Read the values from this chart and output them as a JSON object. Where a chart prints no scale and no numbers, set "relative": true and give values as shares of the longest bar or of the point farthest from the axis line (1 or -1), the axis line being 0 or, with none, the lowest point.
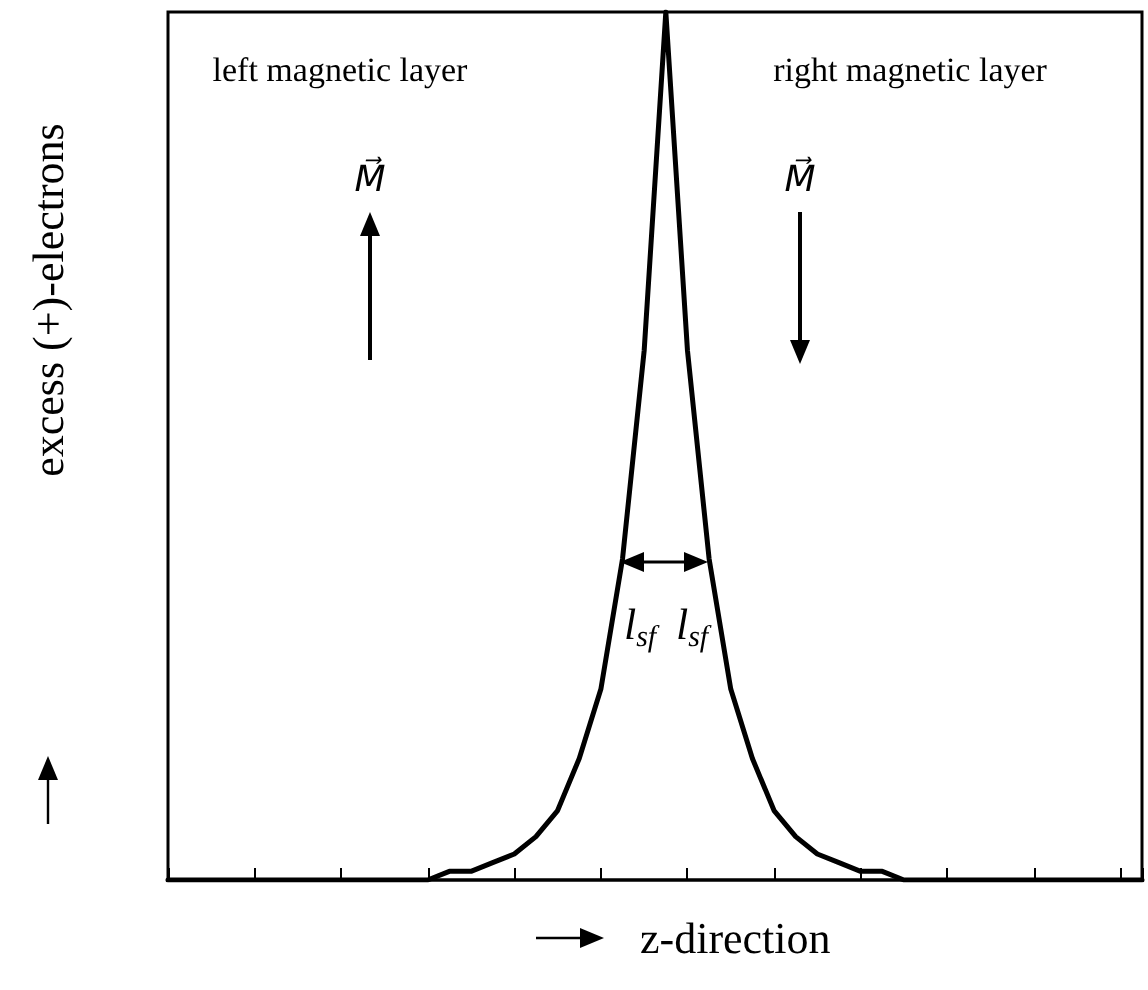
{
  "chart_data": {
    "type": "line",
    "relative": true,
    "xlabel": "z-direction",
    "ylabel": "excess (+)-electrons",
    "categories": [
      null,
      null,
      null,
      null,
      null,
      null,
      null,
      null,
      null,
      null,
      null,
      null,
      null,
      null,
      null,
      null,
      null,
      null,
      null,
      null,
      null,
      null,
      null,
      null,
      null,
      null,
      null,
      null,
      null,
      null,
      null,
      null,
      null,
      null,
      null,
      null,
      null,
      null,
      null,
      null,
      null,
      null,
      null,
      null,
      null,
      null
    ],
    "series": [
      {
        "color": "#000000",
        "values": [
          0,
          0,
          0,
          0,
          0,
          0,
          0,
          0,
          0,
          0,
          0,
          0,
          0,
          0.01,
          0.01,
          0.02,
          0.03,
          0.05,
          0.08,
          0.14,
          0.22,
          0.37,
          0.61,
          1,
          0.61,
          0.37,
          0.22,
          0.14,
          0.08,
          0.05,
          0.03,
          0.02,
          0.01,
          0.01,
          0,
          0,
          0,
          0,
          0,
          0,
          0,
          0,
          0,
          0,
          0,
          0
        ]
      }
    ],
    "annotations": [
      "left magnetic layer",
      "right magnetic layer",
      "M⃗",
      "M⃗",
      "l$_{sf}$",
      "l$_{sf}$"
    ],
    "marker": "none",
    "line_style": "solid"
  }
}
